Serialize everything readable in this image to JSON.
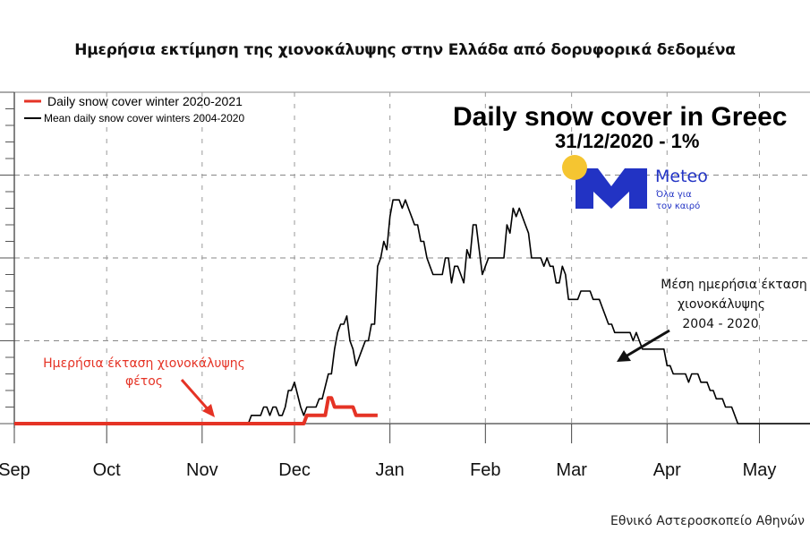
{
  "header": {
    "title": "Ημερήσια εκτίμηση της χιονοκάλυψης στην Ελλάδα από δορυφορικά δεδομένα"
  },
  "footer": {
    "credit": "Εθνικό Αστεροσκοπείο Αθηνών"
  },
  "logo": {
    "brand": "Meteo",
    "tagline_line1": "Όλα για",
    "tagline_line2": "τον καιρό",
    "brand_color": "#2233c4",
    "sun_color": "#f5c531"
  },
  "annotations": {
    "current": {
      "line1": "Ημερήσια έκταση χιονοκάλυψης",
      "line2": "φέτος",
      "color": "#e53325"
    },
    "mean": {
      "line1": "Μέση ημερήσια έκταση",
      "line2": "χιονοκάλυψης",
      "line3": "2004 - 2020",
      "color": "#111111"
    }
  },
  "chart_data": {
    "type": "line",
    "title": "Daily snow cover in Greec",
    "subtitle": "31/12/2020 - 1%",
    "xlabel": "",
    "ylabel": "",
    "x_unit": "days since 1 Sep",
    "y_unit": "relative (gridline units, axis labels not visible)",
    "xlim": [
      -2,
      260
    ],
    "ylim": [
      0,
      4
    ],
    "grid": true,
    "x_ticks": [
      {
        "label": "Sep",
        "x": 0
      },
      {
        "label": "Oct",
        "x": 30
      },
      {
        "label": "Nov",
        "x": 61
      },
      {
        "label": "Dec",
        "x": 91
      },
      {
        "label": "Jan",
        "x": 122
      },
      {
        "label": "Feb",
        "x": 153
      },
      {
        "label": "Mar",
        "x": 181
      },
      {
        "label": "Apr",
        "x": 212
      },
      {
        "label": "May",
        "x": 242
      }
    ],
    "y_gridlines": [
      1,
      2,
      3,
      4
    ],
    "legend": {
      "position": "top-left",
      "entries": [
        {
          "label": "Daily snow cover winter 2020-2021",
          "color": "#e53325"
        },
        {
          "label": "Mean daily snow cover winters 2004-2020",
          "color": "#000000"
        }
      ]
    },
    "series": [
      {
        "name": "Daily snow cover winter 2020-2021",
        "color": "#e53325",
        "points": [
          [
            0,
            0
          ],
          [
            94,
            0
          ],
          [
            95,
            0.1
          ],
          [
            101,
            0.1
          ],
          [
            102,
            0.31
          ],
          [
            103,
            0.31
          ],
          [
            104,
            0.2
          ],
          [
            110,
            0.2
          ],
          [
            111,
            0.1
          ],
          [
            118,
            0.1
          ]
        ]
      },
      {
        "name": "Mean daily snow cover winters 2004-2020",
        "color": "#000000",
        "points": [
          [
            0,
            0
          ],
          [
            76,
            0
          ],
          [
            77,
            0.1
          ],
          [
            80,
            0.1
          ],
          [
            81,
            0.2
          ],
          [
            82,
            0.2
          ],
          [
            83,
            0.1
          ],
          [
            84,
            0.2
          ],
          [
            85,
            0.2
          ],
          [
            86,
            0.1
          ],
          [
            87,
            0.1
          ],
          [
            88,
            0.2
          ],
          [
            89,
            0.4
          ],
          [
            90,
            0.4
          ],
          [
            91,
            0.5
          ],
          [
            93,
            0.2
          ],
          [
            94,
            0.1
          ],
          [
            95,
            0.2
          ],
          [
            98,
            0.2
          ],
          [
            99,
            0.3
          ],
          [
            100,
            0.3
          ],
          [
            102,
            0.6
          ],
          [
            103,
            0.6
          ],
          [
            104,
            0.9
          ],
          [
            105,
            1.1
          ],
          [
            106,
            1.2
          ],
          [
            107,
            1.2
          ],
          [
            108,
            1.3
          ],
          [
            109,
            1.0
          ],
          [
            110,
            0.9
          ],
          [
            111,
            0.7
          ],
          [
            113,
            0.9
          ],
          [
            114,
            1.0
          ],
          [
            115,
            1.0
          ],
          [
            116,
            1.2
          ],
          [
            117,
            1.2
          ],
          [
            118,
            1.9
          ],
          [
            119,
            2.0
          ],
          [
            120,
            2.2
          ],
          [
            121,
            2.1
          ],
          [
            122,
            2.5
          ],
          [
            123,
            2.7
          ],
          [
            124,
            2.7
          ],
          [
            125,
            2.7
          ],
          [
            126,
            2.6
          ],
          [
            127,
            2.7
          ],
          [
            128,
            2.6
          ],
          [
            129,
            2.5
          ],
          [
            130,
            2.4
          ],
          [
            131,
            2.4
          ],
          [
            132,
            2.2
          ],
          [
            133,
            2.2
          ],
          [
            134,
            2.0
          ],
          [
            135,
            1.9
          ],
          [
            136,
            1.8
          ],
          [
            139,
            1.8
          ],
          [
            140,
            2.0
          ],
          [
            141,
            2.0
          ],
          [
            142,
            1.7
          ],
          [
            143,
            1.9
          ],
          [
            144,
            1.9
          ],
          [
            145,
            1.8
          ],
          [
            146,
            1.7
          ],
          [
            147,
            2.1
          ],
          [
            148,
            2.0
          ],
          [
            149,
            2.4
          ],
          [
            150,
            2.4
          ],
          [
            151,
            2.1
          ],
          [
            152,
            1.8
          ],
          [
            153,
            1.9
          ],
          [
            154,
            2.0
          ],
          [
            159,
            2.0
          ],
          [
            160,
            2.4
          ],
          [
            161,
            2.3
          ],
          [
            162,
            2.6
          ],
          [
            163,
            2.5
          ],
          [
            164,
            2.6
          ],
          [
            165,
            2.5
          ],
          [
            166,
            2.4
          ],
          [
            167,
            2.3
          ],
          [
            168,
            2.0
          ],
          [
            171,
            2.0
          ],
          [
            172,
            1.9
          ],
          [
            173,
            2.0
          ],
          [
            174,
            1.9
          ],
          [
            175,
            1.9
          ],
          [
            176,
            1.7
          ],
          [
            177,
            1.7
          ],
          [
            178,
            1.9
          ],
          [
            179,
            1.8
          ],
          [
            180,
            1.5
          ],
          [
            183,
            1.5
          ],
          [
            184,
            1.6
          ],
          [
            187,
            1.6
          ],
          [
            188,
            1.5
          ],
          [
            190,
            1.5
          ],
          [
            191,
            1.4
          ],
          [
            192,
            1.3
          ],
          [
            193,
            1.2
          ],
          [
            194,
            1.2
          ],
          [
            195,
            1.1
          ],
          [
            198,
            1.1
          ],
          [
            200,
            1.1
          ],
          [
            201,
            1.0
          ],
          [
            202,
            1.1
          ],
          [
            203,
            1.0
          ],
          [
            204,
            0.9
          ],
          [
            211,
            0.9
          ],
          [
            212,
            0.7
          ],
          [
            213,
            0.7
          ],
          [
            214,
            0.6
          ],
          [
            218,
            0.6
          ],
          [
            219,
            0.5
          ],
          [
            220,
            0.6
          ],
          [
            222,
            0.6
          ],
          [
            223,
            0.5
          ],
          [
            225,
            0.5
          ],
          [
            226,
            0.4
          ],
          [
            227,
            0.4
          ],
          [
            228,
            0.3
          ],
          [
            230,
            0.3
          ],
          [
            231,
            0.2
          ],
          [
            233,
            0.2
          ],
          [
            234,
            0.1
          ],
          [
            235,
            0
          ],
          [
            260,
            0
          ]
        ]
      }
    ]
  }
}
